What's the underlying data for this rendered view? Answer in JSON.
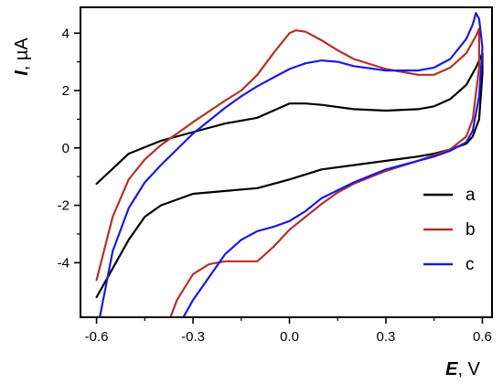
{
  "chart_data": {
    "type": "line",
    "title": "",
    "xlabel": {
      "symbol": "E",
      "rest": ", V"
    },
    "ylabel": {
      "symbol": "I",
      "rest": ", µA"
    },
    "xlim": [
      -0.65,
      0.63
    ],
    "ylim": [
      -5.9,
      4.9
    ],
    "xticks": [
      -0.6,
      -0.3,
      0.0,
      0.3,
      0.6
    ],
    "xtick_labels": [
      "-0.6",
      "-0.3",
      "0.0",
      "0.3",
      "0.6"
    ],
    "yticks": [
      -4,
      -2,
      0,
      2,
      4
    ],
    "ytick_labels": [
      "-4",
      "-2",
      "0",
      "2",
      "4"
    ],
    "grid": false,
    "legend_position": "lower-right",
    "series": [
      {
        "name": "a",
        "color": "#000000",
        "x": [
          -0.6,
          -0.5,
          -0.4,
          -0.3,
          -0.2,
          -0.1,
          -0.05,
          0.0,
          0.05,
          0.1,
          0.2,
          0.3,
          0.4,
          0.45,
          0.5,
          0.55,
          0.58,
          0.6,
          0.6,
          0.59,
          0.57,
          0.55,
          0.5,
          0.45,
          0.4,
          0.3,
          0.2,
          0.1,
          0.0,
          -0.1,
          -0.15,
          -0.2,
          -0.3,
          -0.4,
          -0.45,
          -0.5,
          -0.55,
          -0.6
        ],
        "y": [
          -1.25,
          -0.2,
          0.25,
          0.55,
          0.85,
          1.05,
          1.3,
          1.55,
          1.55,
          1.5,
          1.35,
          1.3,
          1.35,
          1.45,
          1.7,
          2.2,
          2.8,
          3.3,
          2.6,
          1.0,
          0.4,
          0.15,
          -0.05,
          -0.2,
          -0.3,
          -0.45,
          -0.6,
          -0.75,
          -1.1,
          -1.4,
          -1.45,
          -1.5,
          -1.6,
          -2.0,
          -2.4,
          -3.2,
          -4.2,
          -5.2
        ]
      },
      {
        "name": "b",
        "color": "#b5302a",
        "x": [
          -0.6,
          -0.55,
          -0.5,
          -0.45,
          -0.4,
          -0.3,
          -0.2,
          -0.15,
          -0.1,
          -0.05,
          0.0,
          0.02,
          0.05,
          0.1,
          0.15,
          0.2,
          0.3,
          0.4,
          0.45,
          0.5,
          0.55,
          0.58,
          0.59,
          0.59,
          0.57,
          0.55,
          0.5,
          0.45,
          0.4,
          0.3,
          0.2,
          0.15,
          0.1,
          0.05,
          0.0,
          -0.05,
          -0.1,
          -0.15,
          -0.2,
          -0.25,
          -0.3,
          -0.35,
          -0.37
        ],
        "y": [
          -4.6,
          -2.4,
          -1.1,
          -0.4,
          0.1,
          0.9,
          1.65,
          2.0,
          2.55,
          3.3,
          4.0,
          4.1,
          4.05,
          3.75,
          3.4,
          3.1,
          2.75,
          2.55,
          2.55,
          2.8,
          3.3,
          3.9,
          4.15,
          2.8,
          1.0,
          0.4,
          -0.05,
          -0.25,
          -0.45,
          -0.8,
          -1.25,
          -1.55,
          -1.95,
          -2.4,
          -2.85,
          -3.45,
          -3.95,
          -3.95,
          -3.95,
          -4.05,
          -4.4,
          -5.3,
          -5.9
        ]
      },
      {
        "name": "c",
        "color": "#1a1ae0",
        "x": [
          -0.59,
          -0.55,
          -0.5,
          -0.45,
          -0.4,
          -0.3,
          -0.2,
          -0.15,
          -0.1,
          -0.05,
          0.0,
          0.05,
          0.1,
          0.15,
          0.2,
          0.3,
          0.4,
          0.45,
          0.5,
          0.55,
          0.57,
          0.58,
          0.59,
          0.6,
          0.59,
          0.57,
          0.55,
          0.5,
          0.45,
          0.4,
          0.3,
          0.2,
          0.1,
          0.05,
          0.0,
          -0.05,
          -0.1,
          -0.15,
          -0.2,
          -0.25,
          -0.3,
          -0.33
        ],
        "y": [
          -5.9,
          -3.6,
          -2.1,
          -1.2,
          -0.6,
          0.5,
          1.4,
          1.8,
          2.15,
          2.45,
          2.75,
          2.95,
          3.05,
          3.0,
          2.85,
          2.7,
          2.7,
          2.8,
          3.1,
          3.8,
          4.3,
          4.7,
          4.5,
          3.5,
          1.8,
          0.6,
          0.2,
          -0.1,
          -0.3,
          -0.45,
          -0.75,
          -1.2,
          -1.75,
          -2.2,
          -2.55,
          -2.75,
          -2.9,
          -3.2,
          -3.7,
          -4.5,
          -5.3,
          -5.9
        ]
      }
    ]
  }
}
